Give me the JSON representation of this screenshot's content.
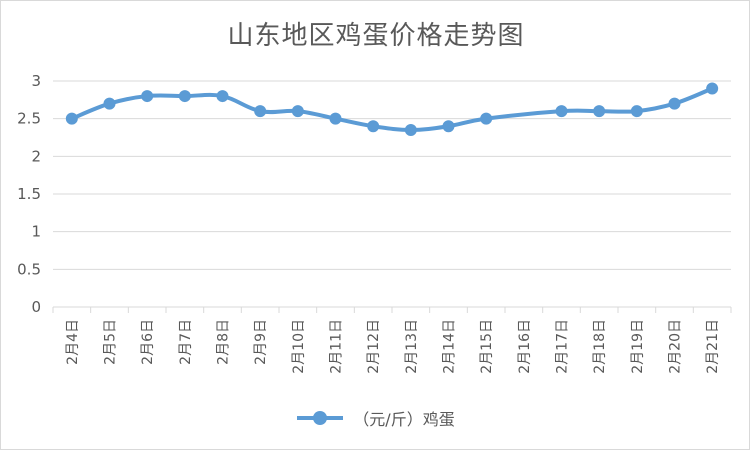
{
  "chart_data": {
    "type": "line",
    "title": "山东地区鸡蛋价格走势图",
    "categories": [
      "2月4日",
      "2月5日",
      "2月6日",
      "2月7日",
      "2月8日",
      "2月9日",
      "2月10日",
      "2月11日",
      "2月12日",
      "2月13日",
      "2月14日",
      "2月15日",
      "2月16日",
      "2月17日",
      "2月18日",
      "2月19日",
      "2月20日",
      "2月21日"
    ],
    "series": [
      {
        "name": "（元/斤）鸡蛋",
        "color": "#5b9bd5",
        "values": [
          2.5,
          2.7,
          2.8,
          2.8,
          2.8,
          2.6,
          2.6,
          2.5,
          2.4,
          2.35,
          2.4,
          2.5,
          null,
          2.6,
          2.6,
          2.6,
          2.7,
          2.9
        ]
      }
    ],
    "ylim": [
      0,
      3
    ],
    "yticks": [
      0,
      0.5,
      1,
      1.5,
      2,
      2.5,
      3
    ],
    "ytick_labels": [
      "0",
      "0.5",
      "1",
      "1.5",
      "2",
      "2.5",
      "3"
    ],
    "grid": true,
    "legend_position": "bottom"
  }
}
